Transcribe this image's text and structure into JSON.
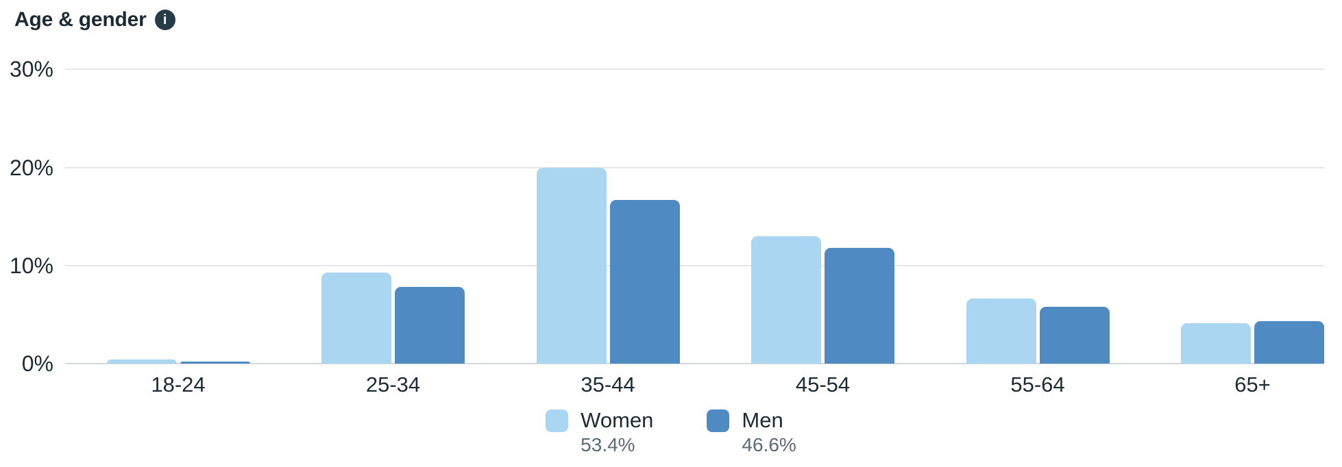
{
  "header": {
    "title": "Age & gender",
    "info_icon_glyph": "i"
  },
  "colors": {
    "women_bar": "#abd6f2",
    "men_bar": "#4f8ac2",
    "title_text": "#1c2b33",
    "axis_text": "#1d2c33",
    "share_text": "#5b6a75",
    "gridline": "#e4e6e9",
    "baseline": "#d4d8db"
  },
  "chart_data": {
    "type": "bar",
    "title": "Age & gender",
    "categories": [
      "18-24",
      "25-34",
      "35-44",
      "45-54",
      "55-64",
      "65+"
    ],
    "series": [
      {
        "name": "Women",
        "share": "53.4%",
        "color": "#abd6f2",
        "values": [
          0.4,
          9.3,
          20.0,
          13.0,
          6.6,
          4.1
        ]
      },
      {
        "name": "Men",
        "share": "46.6%",
        "color": "#4f8ac2",
        "values": [
          0.2,
          7.8,
          16.7,
          11.8,
          5.8,
          4.3
        ]
      }
    ],
    "yticks": [
      {
        "label": "30%",
        "value": 30
      },
      {
        "label": "20%",
        "value": 20
      },
      {
        "label": "10%",
        "value": 10
      },
      {
        "label": "0%",
        "value": 0
      }
    ],
    "ylim": [
      0,
      30
    ],
    "grid": true,
    "legend_position": "bottom"
  }
}
